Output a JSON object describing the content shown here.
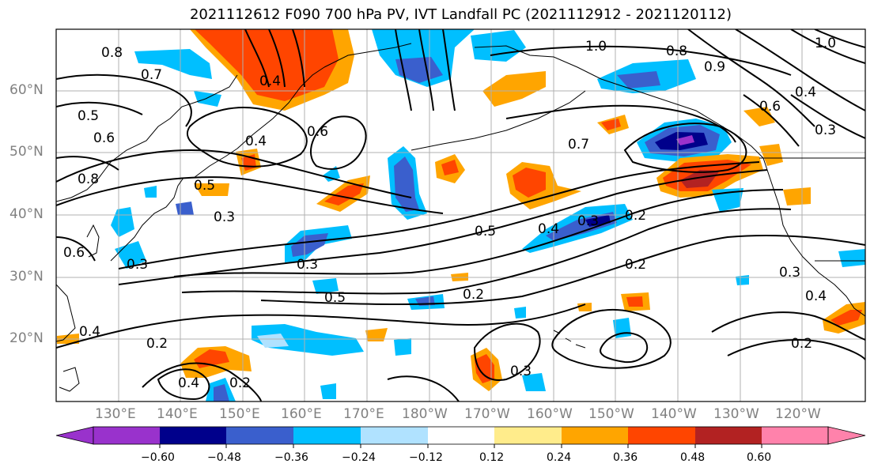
{
  "title": "2021112612 F090 700 hPa PV, IVT Landfall PC (2021112912 - 2021120112)",
  "lat_ticks": [
    "60°N",
    "50°N",
    "40°N",
    "30°N",
    "20°N"
  ],
  "lon_ticks": [
    "130°E",
    "140°E",
    "150°E",
    "160°E",
    "170°E",
    "180°W",
    "170°W",
    "160°W",
    "150°W",
    "140°W",
    "130°W",
    "120°W"
  ],
  "colorbar": {
    "ticks": [
      "−0.60",
      "−0.48",
      "−0.36",
      "−0.24",
      "−0.12",
      "0.12",
      "0.24",
      "0.36",
      "0.48",
      "0.60"
    ],
    "colors": [
      "#9932cc",
      "#00008b",
      "#3a5fcd",
      "#00bfff",
      "#b0e2ff",
      "#ffffff",
      "#ffec8b",
      "#ffa500",
      "#ff4500",
      "#b22222",
      "#ff82ab"
    ]
  },
  "contour_labels": [
    "0.8",
    "0.7",
    "0.5",
    "0.6",
    "0.8",
    "0.4",
    "0.6",
    "0.5",
    "0.3",
    "0.4",
    "0.3",
    "0.6",
    "0.3",
    "0.5",
    "0.2",
    "0.4",
    "0.2",
    "0.5",
    "0.4",
    "0.3",
    "0.2",
    "0.7",
    "1.0",
    "0.8",
    "0.9",
    "0.6",
    "0.4",
    "0.3",
    "0.2",
    "0.3",
    "0.4",
    "0.2",
    "0.3",
    "1.0",
    "0.4",
    "0.2"
  ]
}
